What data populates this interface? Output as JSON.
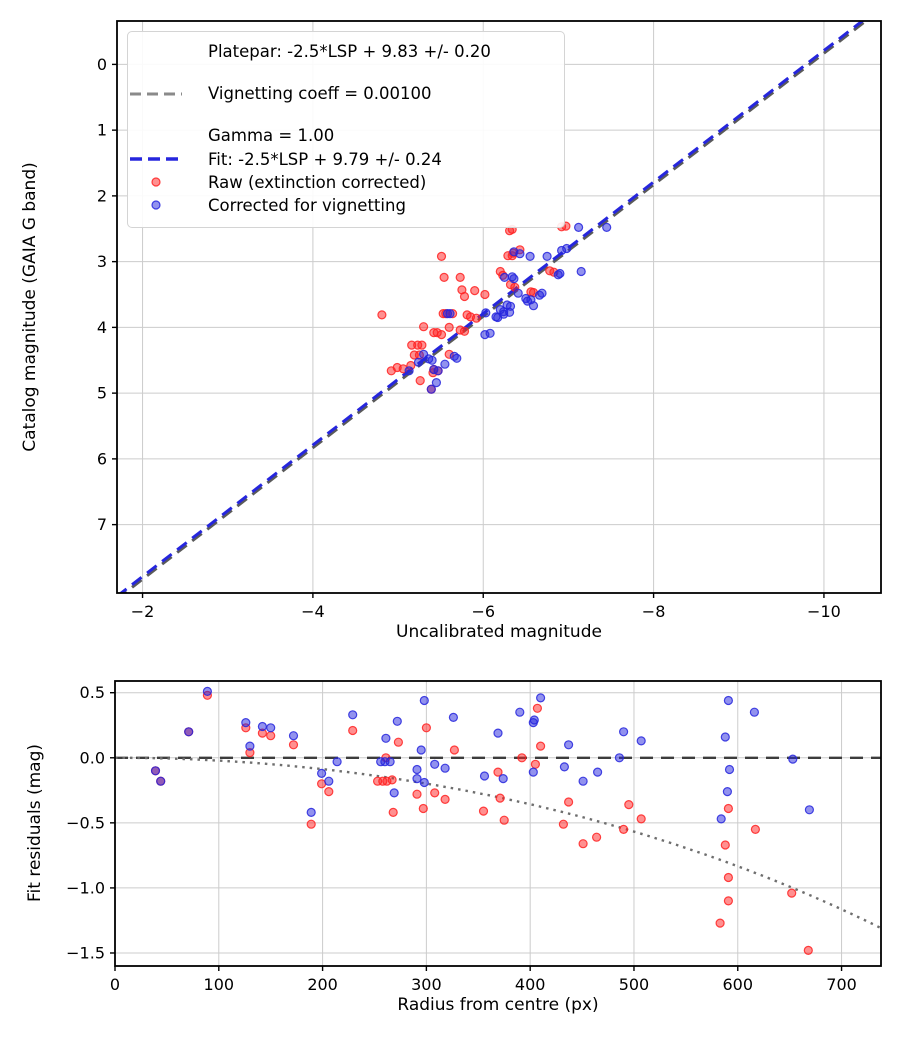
{
  "figure": {
    "background": "#ffffff",
    "accent_blue": "#2626dd",
    "accent_red": "#ff2222",
    "gray_line": "#8a8a8a",
    "dark_line": "#3c3c3c"
  },
  "legend": {
    "platepar_line1": "Platepar: -2.5*LSP + 9.83 +/- 0.20",
    "platepar_line2": "Vignetting coeff = 0.00100",
    "platepar_line3": "Gamma = 1.00",
    "fit_label": "Fit: -2.5*LSP + 9.79 +/- 0.24",
    "raw_label": "Raw (extinction corrected)",
    "corrected_label": "Corrected for vignetting"
  },
  "chart_data": [
    {
      "type": "scatter",
      "title": "",
      "xlabel": "Uncalibrated magnitude",
      "ylabel": "Catalog magnitude (GAIA G band)",
      "xlim": [
        -1.7,
        -10.67
      ],
      "ylim": [
        -0.66,
        8.04
      ],
      "x_axis_inverted": true,
      "y_axis_inverted": true,
      "grid": true,
      "legend_position": "upper left",
      "x_ticks": [
        {
          "v": -2,
          "label": "−2"
        },
        {
          "v": -4,
          "label": "−4"
        },
        {
          "v": -6,
          "label": "−6"
        },
        {
          "v": -8,
          "label": "−8"
        },
        {
          "v": -10,
          "label": "−10"
        }
      ],
      "y_ticks": [
        {
          "v": 0,
          "label": "0"
        },
        {
          "v": 1,
          "label": "1"
        },
        {
          "v": 2,
          "label": "2"
        },
        {
          "v": 3,
          "label": "3"
        },
        {
          "v": 4,
          "label": "4"
        },
        {
          "v": 5,
          "label": "5"
        },
        {
          "v": 6,
          "label": "6"
        },
        {
          "v": 7,
          "label": "7"
        }
      ],
      "lines": [
        {
          "name": "platepar",
          "slope": 1,
          "intercept": 9.83,
          "color": "#5a5a5a",
          "width": 3,
          "dash": "12 7"
        },
        {
          "name": "fit",
          "slope": 1,
          "intercept": 9.79,
          "color": "#2626dd",
          "width": 3,
          "dash": "12 7"
        }
      ],
      "series": [
        {
          "name": "Raw (extinction corrected)",
          "color": "#ff2222",
          "points": [
            [
              -4.81,
              3.81
            ],
            [
              -4.92,
              4.66
            ],
            [
              -4.99,
              4.61
            ],
            [
              -5.06,
              4.63
            ],
            [
              -5.15,
              4.58
            ],
            [
              -5.16,
              4.27
            ],
            [
              -5.19,
              4.42
            ],
            [
              -5.23,
              4.27
            ],
            [
              -5.25,
              4.42
            ],
            [
              -5.26,
              4.81
            ],
            [
              -5.28,
              4.27
            ],
            [
              -5.3,
              3.99
            ],
            [
              -5.39,
              4.94
            ],
            [
              -5.41,
              4.69
            ],
            [
              -5.42,
              4.64
            ],
            [
              -5.42,
              4.08
            ],
            [
              -5.46,
              4.08
            ],
            [
              -5.47,
              4.66
            ],
            [
              -5.51,
              4.11
            ],
            [
              -5.51,
              2.92
            ],
            [
              -5.53,
              3.79
            ],
            [
              -5.56,
              3.79
            ],
            [
              -5.54,
              3.24
            ],
            [
              -5.6,
              4.0
            ],
            [
              -5.6,
              4.41
            ],
            [
              -5.64,
              3.79
            ],
            [
              -5.73,
              3.24
            ],
            [
              -5.73,
              4.04
            ],
            [
              -5.75,
              3.43
            ],
            [
              -5.78,
              3.53
            ],
            [
              -5.78,
              4.06
            ],
            [
              -5.81,
              3.81
            ],
            [
              -5.85,
              3.84
            ],
            [
              -5.9,
              3.44
            ],
            [
              -5.92,
              3.86
            ],
            [
              -6.02,
              3.5
            ],
            [
              -6.2,
              3.15
            ],
            [
              -6.23,
              3.21
            ],
            [
              -6.29,
              2.91
            ],
            [
              -6.31,
              2.53
            ],
            [
              -6.32,
              3.35
            ],
            [
              -6.34,
              2.51
            ],
            [
              -6.34,
              2.91
            ],
            [
              -6.35,
              2.87
            ],
            [
              -6.37,
              3.39
            ],
            [
              -6.43,
              2.82
            ],
            [
              -6.56,
              3.46
            ],
            [
              -6.59,
              3.47
            ],
            [
              -6.78,
              3.14
            ],
            [
              -6.83,
              3.16
            ],
            [
              -6.92,
              2.47
            ],
            [
              -6.97,
              2.46
            ]
          ]
        },
        {
          "name": "Corrected for vignetting",
          "color": "#2626dd",
          "points": [
            [
              -5.13,
              4.66
            ],
            [
              -5.24,
              4.53
            ],
            [
              -5.3,
              4.41
            ],
            [
              -5.36,
              4.48
            ],
            [
              -5.4,
              4.5
            ],
            [
              -5.39,
              4.94
            ],
            [
              -5.42,
              4.64
            ],
            [
              -5.45,
              4.84
            ],
            [
              -5.47,
              4.66
            ],
            [
              -5.55,
              4.56
            ],
            [
              -5.58,
              3.79
            ],
            [
              -5.61,
              3.79
            ],
            [
              -5.66,
              4.44
            ],
            [
              -5.69,
              4.47
            ],
            [
              -6.02,
              4.11
            ],
            [
              -6.08,
              4.09
            ],
            [
              -6.03,
              3.78
            ],
            [
              -6.15,
              3.84
            ],
            [
              -6.17,
              3.85
            ],
            [
              -6.2,
              3.73
            ],
            [
              -6.24,
              3.76
            ],
            [
              -6.24,
              3.8
            ],
            [
              -6.25,
              3.24
            ],
            [
              -6.28,
              3.66
            ],
            [
              -6.31,
              3.77
            ],
            [
              -6.32,
              3.68
            ],
            [
              -6.34,
              3.23
            ],
            [
              -6.36,
              3.26
            ],
            [
              -6.36,
              2.85
            ],
            [
              -6.41,
              3.48
            ],
            [
              -6.43,
              2.88
            ],
            [
              -6.5,
              3.56
            ],
            [
              -6.52,
              3.6
            ],
            [
              -6.55,
              2.92
            ],
            [
              -6.56,
              3.58
            ],
            [
              -6.59,
              3.67
            ],
            [
              -6.66,
              3.51
            ],
            [
              -6.69,
              3.48
            ],
            [
              -6.75,
              2.92
            ],
            [
              -6.88,
              3.2
            ],
            [
              -6.9,
              3.18
            ],
            [
              -6.92,
              2.83
            ],
            [
              -6.98,
              2.8
            ],
            [
              -7.12,
              2.48
            ],
            [
              -7.15,
              3.15
            ],
            [
              -7.45,
              2.48
            ]
          ]
        }
      ]
    },
    {
      "type": "scatter",
      "title": "",
      "xlabel": "Radius from centre (px)",
      "ylabel": "Fit residuals (mag)",
      "xlim": [
        0,
        738
      ],
      "ylim": [
        0.59,
        -1.6
      ],
      "grid": true,
      "x_ticks": [
        {
          "v": 0,
          "label": "0"
        },
        {
          "v": 100,
          "label": "100"
        },
        {
          "v": 200,
          "label": "200"
        },
        {
          "v": 300,
          "label": "300"
        },
        {
          "v": 400,
          "label": "400"
        },
        {
          "v": 500,
          "label": "500"
        },
        {
          "v": 600,
          "label": "600"
        },
        {
          "v": 700,
          "label": "700"
        }
      ],
      "y_ticks": [
        {
          "v": 0.5,
          "label": "0.5"
        },
        {
          "v": 0,
          "label": "0.0"
        },
        {
          "v": -0.5,
          "label": "−0.5"
        },
        {
          "v": -1,
          "label": "−1.0"
        },
        {
          "v": -1.5,
          "label": "−1.5"
        }
      ],
      "zero_line": {
        "y": 0,
        "color": "#3c3c3c",
        "width": 2.4,
        "dash": "13 8"
      },
      "model_curve": {
        "name": "vignetting-model",
        "coeff": 0.001,
        "formula": "2.5*log10(cos^4(coeff*r))",
        "color": "#6e6e6e",
        "width": 2.4,
        "dash": "2.5 5"
      },
      "series": [
        {
          "name": "Raw (extinction corrected)",
          "color": "#ff2222",
          "points": [
            [
              39,
              -0.1
            ],
            [
              44,
              -0.18
            ],
            [
              71,
              0.2
            ],
            [
              89,
              0.48
            ],
            [
              126,
              0.23
            ],
            [
              130,
              0.04
            ],
            [
              142,
              0.19
            ],
            [
              150,
              0.17
            ],
            [
              172,
              0.1
            ],
            [
              189,
              -0.51
            ],
            [
              199,
              -0.2
            ],
            [
              206,
              -0.26
            ],
            [
              229,
              0.21
            ],
            [
              253,
              -0.18
            ],
            [
              258,
              -0.18
            ],
            [
              262,
              -0.18
            ],
            [
              267,
              -0.17
            ],
            [
              261,
              0.0
            ],
            [
              268,
              -0.42
            ],
            [
              273,
              0.12
            ],
            [
              291,
              -0.28
            ],
            [
              297,
              -0.39
            ],
            [
              300,
              0.23
            ],
            [
              308,
              -0.27
            ],
            [
              318,
              -0.32
            ],
            [
              327,
              0.06
            ],
            [
              355,
              -0.41
            ],
            [
              369,
              -0.11
            ],
            [
              371,
              -0.31
            ],
            [
              375,
              -0.48
            ],
            [
              392,
              0.0
            ],
            [
              405,
              -0.05
            ],
            [
              407,
              0.38
            ],
            [
              410,
              0.09
            ],
            [
              432,
              -0.51
            ],
            [
              437,
              -0.34
            ],
            [
              451,
              -0.66
            ],
            [
              464,
              -0.61
            ],
            [
              490,
              -0.55
            ],
            [
              495,
              -0.36
            ],
            [
              507,
              -0.47
            ],
            [
              583,
              -1.27
            ],
            [
              588,
              -0.67
            ],
            [
              591,
              -0.39
            ],
            [
              591,
              -0.92
            ],
            [
              591,
              -1.1
            ],
            [
              617,
              -0.55
            ],
            [
              652,
              -1.04
            ],
            [
              668,
              -1.48
            ]
          ]
        },
        {
          "name": "Corrected for vignetting",
          "color": "#2626dd",
          "points": [
            [
              39,
              -0.1
            ],
            [
              44,
              -0.18
            ],
            [
              71,
              0.2
            ],
            [
              89,
              0.51
            ],
            [
              126,
              0.27
            ],
            [
              130,
              0.09
            ],
            [
              142,
              0.24
            ],
            [
              150,
              0.23
            ],
            [
              172,
              0.17
            ],
            [
              189,
              -0.42
            ],
            [
              199,
              -0.12
            ],
            [
              206,
              -0.18
            ],
            [
              214,
              -0.03
            ],
            [
              229,
              0.33
            ],
            [
              256,
              -0.03
            ],
            [
              260,
              -0.03
            ],
            [
              265,
              -0.03
            ],
            [
              261,
              0.15
            ],
            [
              269,
              -0.27
            ],
            [
              272,
              0.28
            ],
            [
              291,
              -0.09
            ],
            [
              291,
              -0.16
            ],
            [
              295,
              0.06
            ],
            [
              298,
              0.44
            ],
            [
              298,
              -0.19
            ],
            [
              308,
              -0.05
            ],
            [
              318,
              -0.08
            ],
            [
              326,
              0.31
            ],
            [
              356,
              -0.14
            ],
            [
              369,
              0.19
            ],
            [
              374,
              -0.16
            ],
            [
              390,
              0.35
            ],
            [
              403,
              0.27
            ],
            [
              404,
              0.29
            ],
            [
              403,
              -0.11
            ],
            [
              410,
              0.46
            ],
            [
              433,
              -0.07
            ],
            [
              437,
              0.1
            ],
            [
              451,
              -0.18
            ],
            [
              465,
              -0.11
            ],
            [
              486,
              0.0
            ],
            [
              490,
              0.2
            ],
            [
              507,
              0.13
            ],
            [
              584,
              -0.47
            ],
            [
              588,
              0.16
            ],
            [
              590,
              -0.26
            ],
            [
              591,
              0.44
            ],
            [
              592,
              -0.09
            ],
            [
              616,
              0.35
            ],
            [
              653,
              -0.01
            ],
            [
              669,
              -0.4
            ]
          ]
        }
      ]
    }
  ]
}
